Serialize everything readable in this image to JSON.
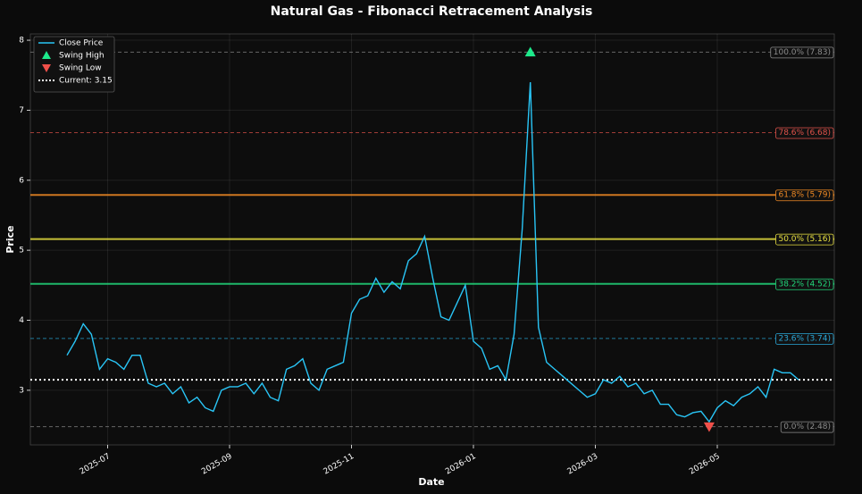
{
  "chart_data": {
    "type": "line",
    "title": "Natural Gas - Fibonacci Retracement Analysis",
    "x_label": "Date",
    "y_label": "Price",
    "categories": [
      null,
      null,
      null,
      null,
      null,
      "2025-07",
      null,
      null,
      null,
      null,
      null,
      null,
      null,
      null,
      null,
      null,
      null,
      null,
      null,
      null,
      "2025-09",
      null,
      null,
      null,
      null,
      null,
      null,
      null,
      null,
      null,
      null,
      null,
      null,
      null,
      null,
      "2025-11",
      null,
      null,
      null,
      null,
      null,
      null,
      null,
      null,
      null,
      null,
      null,
      null,
      null,
      null,
      "2026-01",
      null,
      null,
      null,
      null,
      null,
      null,
      null,
      null,
      null,
      null,
      null,
      null,
      null,
      null,
      "2026-03",
      null,
      null,
      null,
      null,
      null,
      null,
      null,
      null,
      null,
      null,
      null,
      null,
      null,
      null,
      "2026-05",
      null,
      null,
      null,
      null,
      null,
      null,
      null,
      null,
      null,
      null
    ],
    "series": [
      {
        "name": "Close Price",
        "color": "#29c5f6",
        "marker": "line",
        "values": [
          3.5,
          3.7,
          3.95,
          3.8,
          3.3,
          3.45,
          3.4,
          3.3,
          3.5,
          3.5,
          3.1,
          3.05,
          3.1,
          2.95,
          3.05,
          2.82,
          2.9,
          2.75,
          2.7,
          3.0,
          3.05,
          3.05,
          3.1,
          2.95,
          3.1,
          2.9,
          2.85,
          3.3,
          3.35,
          3.45,
          3.1,
          3.0,
          3.3,
          3.35,
          3.4,
          4.1,
          4.3,
          4.35,
          4.6,
          4.4,
          4.55,
          4.45,
          4.85,
          4.95,
          5.2,
          4.6,
          4.05,
          4.0,
          4.25,
          4.5,
          3.7,
          3.6,
          3.3,
          3.35,
          3.15,
          3.8,
          5.3,
          7.4,
          3.9,
          3.4,
          3.3,
          3.2,
          3.1,
          3.0,
          2.9,
          2.95,
          3.15,
          3.1,
          3.2,
          3.05,
          3.1,
          2.95,
          3.0,
          2.8,
          2.8,
          2.65,
          2.62,
          2.68,
          2.7,
          2.55,
          2.75,
          2.85,
          2.78,
          2.9,
          2.95,
          3.05,
          2.9,
          3.3,
          3.25,
          3.25,
          3.15
        ]
      },
      {
        "name": "Swing High",
        "color": "#1de98b",
        "marker": "up",
        "values": [
          null,
          null,
          null,
          null,
          null,
          null,
          null,
          null,
          null,
          null,
          null,
          null,
          null,
          null,
          null,
          null,
          null,
          null,
          null,
          null,
          null,
          null,
          null,
          null,
          null,
          null,
          null,
          null,
          null,
          null,
          null,
          null,
          null,
          null,
          null,
          null,
          null,
          null,
          null,
          null,
          null,
          null,
          null,
          null,
          null,
          null,
          null,
          null,
          null,
          null,
          null,
          null,
          null,
          null,
          null,
          null,
          null,
          7.83,
          null,
          null,
          null,
          null,
          null,
          null,
          null,
          null,
          null,
          null,
          null,
          null,
          null,
          null,
          null,
          null,
          null,
          null,
          null,
          null,
          null,
          null,
          null,
          null,
          null,
          null,
          null,
          null,
          null,
          null,
          null,
          null,
          null
        ]
      },
      {
        "name": "Swing Low",
        "color": "#f0504a",
        "marker": "down",
        "values": [
          null,
          null,
          null,
          null,
          null,
          null,
          null,
          null,
          null,
          null,
          null,
          null,
          null,
          null,
          null,
          null,
          null,
          null,
          null,
          null,
          null,
          null,
          null,
          null,
          null,
          null,
          null,
          null,
          null,
          null,
          null,
          null,
          null,
          null,
          null,
          null,
          null,
          null,
          null,
          null,
          null,
          null,
          null,
          null,
          null,
          null,
          null,
          null,
          null,
          null,
          null,
          null,
          null,
          null,
          null,
          null,
          null,
          null,
          null,
          null,
          null,
          null,
          null,
          null,
          null,
          null,
          null,
          null,
          null,
          null,
          null,
          null,
          null,
          null,
          null,
          null,
          null,
          null,
          null,
          2.48,
          null,
          null,
          null,
          null,
          null,
          null,
          null,
          null,
          null,
          null,
          null
        ]
      }
    ],
    "current": {
      "name": "Current: 3.15",
      "value": 3.15,
      "color": "#ffffff"
    },
    "levels": [
      {
        "label": "100.0% (7.83)",
        "value": 7.83,
        "color": "#8c8c8c",
        "style": "dashed"
      },
      {
        "label": "78.6% (6.68)",
        "value": 6.68,
        "color": "#e0524a",
        "style": "dashed"
      },
      {
        "label": "61.8% (5.79)",
        "value": 5.79,
        "color": "#f08a24",
        "style": "solid"
      },
      {
        "label": "50.0% (5.16)",
        "value": 5.16,
        "color": "#e8e040",
        "style": "solid"
      },
      {
        "label": "38.2% (4.52)",
        "value": 4.52,
        "color": "#22d67a",
        "style": "solid"
      },
      {
        "label": "23.6% (3.74)",
        "value": 3.74,
        "color": "#2aa7d8",
        "style": "dashed"
      },
      {
        "label": "0.0% (2.48)",
        "value": 2.48,
        "color": "#8c8c8c",
        "style": "dashed"
      }
    ],
    "ylim": [
      2.22,
      8.09
    ],
    "yticks": [
      3,
      4,
      5,
      6,
      7,
      8
    ],
    "grid": true,
    "legend": "upper left"
  }
}
